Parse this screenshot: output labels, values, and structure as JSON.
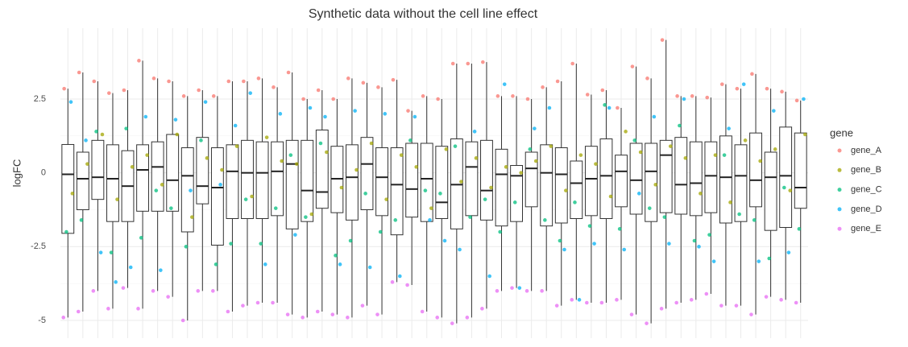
{
  "chart_data": {
    "type": "box",
    "title": "Synthetic data without the cell line effect",
    "y_label": "logFC",
    "legend_title": "gene",
    "grid": true,
    "ylim": [
      -5.6,
      4.9
    ],
    "yticks": [
      -5,
      -2.5,
      0,
      2.5
    ],
    "categories": [
      null,
      null,
      null,
      null,
      null,
      null,
      null,
      null,
      null,
      null,
      null,
      null,
      null,
      null,
      null,
      null,
      null,
      null,
      null,
      null,
      null,
      null,
      null,
      null,
      null,
      null,
      null,
      null,
      null,
      null,
      null,
      null,
      null,
      null,
      null,
      null,
      null,
      null,
      null,
      null,
      null,
      null,
      null,
      null,
      null,
      null,
      null,
      null,
      null,
      null
    ],
    "boxes": {
      "whisker_low": [
        -4.9,
        -4.7,
        -4.0,
        -4.6,
        -3.9,
        -4.6,
        -4.0,
        -4.2,
        -5.0,
        -4.0,
        -4.0,
        -4.7,
        -4.5,
        -4.4,
        -4.4,
        -4.8,
        -4.9,
        -4.7,
        -4.8,
        -4.9,
        -4.5,
        -4.8,
        -3.7,
        -3.8,
        -4.7,
        -4.9,
        -5.1,
        -4.9,
        -4.6,
        -4.0,
        -3.9,
        -4.0,
        -4.0,
        -4.5,
        -4.3,
        -4.4,
        -4.4,
        -4.3,
        -4.8,
        -5.1,
        -4.6,
        -4.4,
        -4.3,
        -4.1,
        -4.5,
        -4.5,
        -4.8,
        -4.2,
        -4.3,
        -4.4
      ],
      "q1": [
        -2.05,
        -1.25,
        -0.9,
        -1.65,
        -1.65,
        -1.3,
        -1.3,
        -1.3,
        -2.0,
        -1.05,
        -2.45,
        -1.55,
        -1.55,
        -1.55,
        -1.45,
        -1.9,
        -1.65,
        -1.2,
        -1.35,
        -1.6,
        -1.25,
        -1.45,
        -2.1,
        -1.5,
        -1.65,
        -1.55,
        -1.9,
        -1.45,
        -1.6,
        -1.8,
        -1.65,
        -1.15,
        -1.8,
        -1.7,
        -1.55,
        -1.45,
        -1.55,
        -1.15,
        -1.4,
        -1.65,
        -1.35,
        -1.4,
        -1.45,
        -1.35,
        -1.7,
        -1.65,
        -1.15,
        -1.95,
        -1.85,
        -1.2
      ],
      "median": [
        -0.05,
        -0.2,
        -0.15,
        -0.2,
        -0.45,
        0.1,
        0.2,
        -0.25,
        -0.1,
        -0.45,
        -0.5,
        0.05,
        0.0,
        0.0,
        0.05,
        0.3,
        -0.6,
        -0.65,
        -0.2,
        -0.15,
        0.3,
        -0.15,
        -0.4,
        -0.55,
        -0.2,
        -1.0,
        -0.4,
        0.2,
        -0.6,
        -0.05,
        -0.1,
        0.15,
        0.0,
        -0.05,
        -0.35,
        -0.2,
        -0.1,
        0.05,
        -0.25,
        0.05,
        0.6,
        -0.4,
        -0.35,
        -0.1,
        -0.15,
        -0.1,
        -0.25,
        -0.15,
        -0.1,
        -0.5
      ],
      "q3": [
        0.96,
        0.7,
        1.1,
        0.95,
        0.75,
        0.95,
        1.05,
        1.3,
        0.85,
        1.2,
        0.85,
        0.95,
        1.1,
        1.05,
        1.05,
        1.1,
        1.1,
        1.45,
        0.9,
        0.95,
        1.2,
        0.85,
        0.85,
        1.0,
        1.0,
        0.9,
        1.15,
        1.05,
        1.1,
        0.8,
        0.25,
        0.7,
        0.95,
        0.85,
        0.4,
        0.9,
        1.15,
        0.6,
        1.0,
        1.0,
        1.1,
        1.2,
        1.05,
        1.05,
        1.25,
        0.95,
        1.35,
        0.7,
        1.55,
        1.35
      ],
      "whisker_high": [
        2.85,
        3.4,
        3.1,
        2.7,
        2.8,
        3.8,
        3.2,
        3.1,
        2.6,
        2.8,
        2.6,
        3.1,
        3.1,
        3.2,
        2.9,
        3.4,
        2.5,
        2.8,
        2.5,
        3.2,
        3.05,
        2.9,
        3.15,
        2.1,
        2.6,
        2.5,
        3.7,
        3.7,
        3.75,
        2.6,
        2.6,
        2.5,
        2.9,
        3.1,
        3.7,
        2.65,
        2.8,
        2.2,
        3.6,
        3.2,
        4.5,
        2.6,
        2.6,
        2.55,
        3.0,
        2.85,
        3.35,
        2.85,
        2.75,
        2.45
      ]
    },
    "series": [
      {
        "name": "gene_A",
        "color": "#F8766D",
        "values": [
          2.85,
          3.4,
          3.1,
          2.7,
          2.8,
          3.8,
          3.2,
          3.1,
          2.6,
          2.8,
          2.6,
          3.1,
          3.1,
          3.2,
          2.9,
          3.4,
          2.5,
          2.8,
          2.5,
          3.2,
          3.05,
          2.9,
          3.15,
          2.1,
          2.6,
          2.5,
          3.7,
          3.7,
          3.75,
          2.6,
          2.6,
          2.5,
          2.9,
          3.1,
          3.7,
          2.65,
          2.8,
          2.2,
          3.6,
          3.2,
          4.5,
          2.6,
          2.6,
          2.55,
          3.0,
          2.85,
          3.35,
          2.85,
          2.75,
          2.45
        ]
      },
      {
        "name": "gene_B",
        "color": "#A3A500",
        "values": [
          -0.7,
          0.3,
          1.3,
          -0.9,
          0.2,
          0.6,
          -0.4,
          1.3,
          -1.5,
          0.5,
          0.1,
          0.9,
          -0.8,
          1.2,
          0.4,
          0.3,
          -1.4,
          0.7,
          -0.5,
          0.1,
          1.0,
          -0.9,
          0.6,
          0.2,
          -1.2,
          0.8,
          -0.3,
          0.5,
          -0.5,
          0.2,
          0.0,
          0.4,
          0.9,
          -0.6,
          0.6,
          0.3,
          -0.8,
          1.4,
          0.7,
          -0.4,
          0.9,
          0.5,
          -0.7,
          0.6,
          -1.0,
          1.1,
          0.4,
          0.8,
          -0.6,
          1.3
        ]
      },
      {
        "name": "gene_C",
        "color": "#00BF7D",
        "values": [
          -2.0,
          -1.6,
          1.4,
          -2.7,
          1.5,
          -2.2,
          -0.6,
          -1.2,
          -2.5,
          1.1,
          -3.1,
          -2.4,
          -0.9,
          -2.4,
          -1.2,
          0.6,
          -1.5,
          1.0,
          -2.8,
          -2.3,
          -0.7,
          -2.0,
          -1.6,
          1.1,
          -0.6,
          -0.7,
          0.9,
          -1.5,
          -0.9,
          -2.0,
          -1.0,
          0.8,
          -1.6,
          -2.3,
          -1.0,
          -1.8,
          2.3,
          -1.9,
          1.1,
          -1.2,
          -1.5,
          1.6,
          -2.3,
          -2.1,
          0.6,
          -1.4,
          -1.6,
          -2.9,
          -0.5,
          -1.9
        ]
      },
      {
        "name": "gene_D",
        "color": "#00B0F6",
        "values": [
          2.4,
          1.1,
          -2.7,
          -3.7,
          -3.2,
          1.9,
          -3.3,
          1.8,
          -0.6,
          2.4,
          -0.4,
          1.6,
          2.7,
          -3.1,
          2.0,
          -2.1,
          2.2,
          1.9,
          -3.1,
          2.1,
          -3.2,
          2.0,
          -3.5,
          1.9,
          -1.6,
          -2.3,
          -2.6,
          1.4,
          -3.5,
          3.0,
          -3.9,
          1.5,
          2.2,
          -2.6,
          -4.3,
          -2.4,
          2.2,
          -2.6,
          -0.7,
          1.9,
          -2.4,
          2.5,
          -2.5,
          -3.0,
          1.5,
          3.0,
          -3.0,
          2.1,
          -2.7,
          2.5
        ]
      },
      {
        "name": "gene_E",
        "color": "#E76BF3",
        "values": [
          -4.9,
          -4.7,
          -4.0,
          -4.6,
          -3.9,
          -4.6,
          -4.0,
          -4.2,
          -5.0,
          -4.0,
          -4.0,
          -4.7,
          -4.5,
          -4.4,
          -4.4,
          -4.8,
          -4.9,
          -4.7,
          -4.8,
          -4.9,
          -4.5,
          -4.8,
          -3.7,
          -3.8,
          -4.7,
          -4.9,
          -5.1,
          -4.9,
          -4.6,
          -4.0,
          -3.9,
          -4.0,
          -4.0,
          -4.5,
          -4.3,
          -4.4,
          -4.4,
          -4.3,
          -4.8,
          -5.1,
          -4.6,
          -4.4,
          -4.3,
          -4.1,
          -4.5,
          -4.5,
          -4.8,
          -4.2,
          -4.3,
          -4.4
        ]
      }
    ]
  }
}
